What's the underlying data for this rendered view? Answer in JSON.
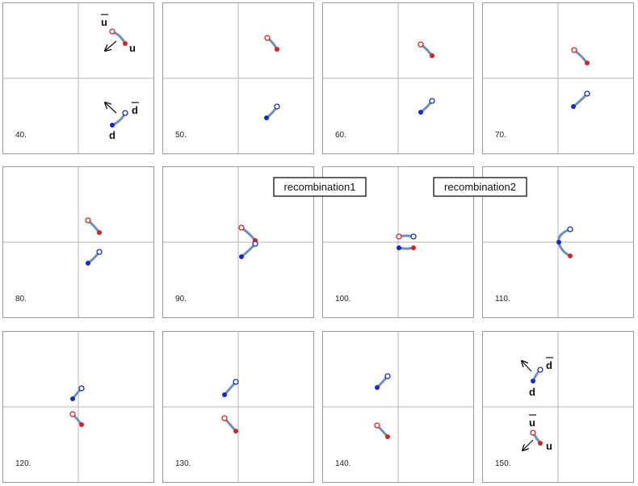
{
  "colors": {
    "quark_red": "#e02020",
    "antiquark_red": "#e02020",
    "quark_blue": "#1428d8",
    "antiquark_blue": "#1428d8",
    "string": "#6f8fc0"
  },
  "frames": [
    {
      "label": "40."
    },
    {
      "label": "50."
    },
    {
      "label": "60."
    },
    {
      "label": "70."
    },
    {
      "label": "80."
    },
    {
      "label": "90."
    },
    {
      "label": "100."
    },
    {
      "label": "110."
    },
    {
      "label": "120."
    },
    {
      "label": "130."
    },
    {
      "label": "140."
    },
    {
      "label": "150."
    }
  ],
  "quark_labels": {
    "u": "u",
    "u_bar": "u",
    "d": "d",
    "d_bar": "d"
  },
  "annotations": {
    "recombination1": "recombination1",
    "recombination2": "recombination2"
  }
}
